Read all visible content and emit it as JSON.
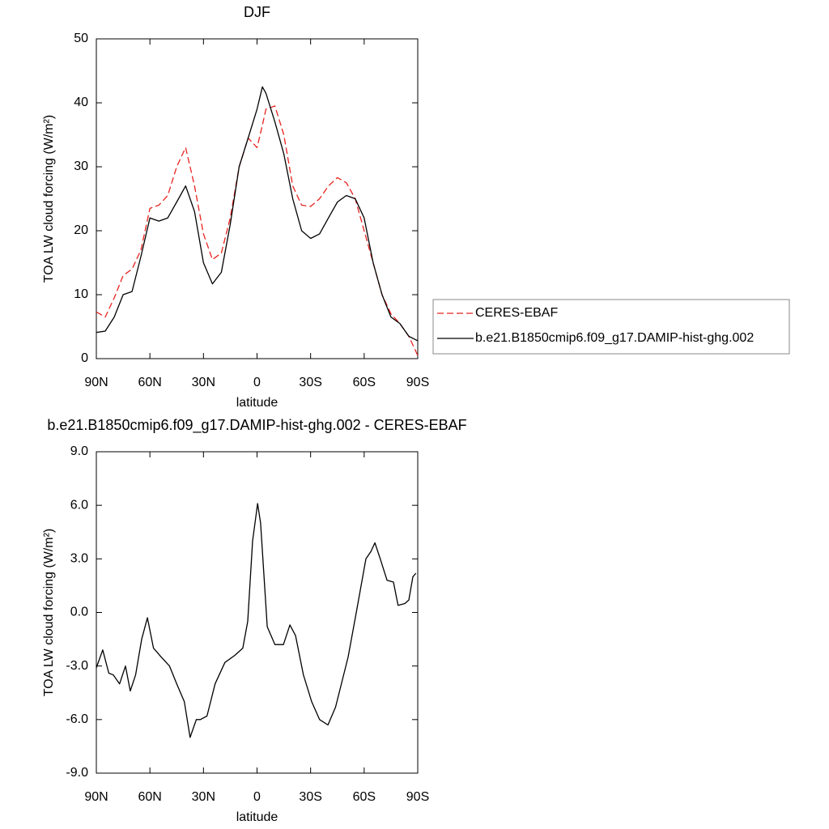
{
  "chart_data": [
    {
      "type": "line",
      "title": "DJF",
      "xlabel": "latitude",
      "ylabel": "TOA LW cloud forcing (W/m²)",
      "x": [
        90,
        85,
        80,
        75,
        70,
        65,
        60,
        55,
        50,
        45,
        40,
        35,
        30,
        25,
        20,
        15,
        10,
        5,
        0,
        -3,
        -5,
        -10,
        -15,
        -20,
        -25,
        -30,
        -35,
        -40,
        -45,
        -50,
        -55,
        -60,
        -65,
        -70,
        -75,
        -80,
        -85,
        -90
      ],
      "xlim": [
        90,
        -90
      ],
      "xticks": [
        {
          "value": 90,
          "label": "90N"
        },
        {
          "value": 60,
          "label": "60N"
        },
        {
          "value": 30,
          "label": "30N"
        },
        {
          "value": 0,
          "label": "0"
        },
        {
          "value": -30,
          "label": "30S"
        },
        {
          "value": -60,
          "label": "60S"
        },
        {
          "value": -90,
          "label": "90S"
        }
      ],
      "ylim": [
        0,
        50
      ],
      "yticks": [
        0,
        10,
        20,
        30,
        40,
        50
      ],
      "legend": "right",
      "series": [
        {
          "name": "CERES-EBAF",
          "color": "#e8231f",
          "dash": true,
          "values": [
            7.3,
            6.5,
            9.5,
            13,
            14,
            17,
            23.5,
            24,
            25.5,
            30,
            33,
            27,
            19.5,
            15.5,
            16.5,
            22,
            30,
            34.5,
            33,
            36.5,
            39,
            39.5,
            35,
            27,
            24,
            23.8,
            25,
            27,
            28.3,
            27.5,
            25,
            20,
            15,
            10,
            7,
            5.5,
            3.5,
            0.5
          ]
        },
        {
          "name": "b.e21.B1850cmip6.f09_g17.DAMIP-hist-ghg.002",
          "color": "#000000",
          "dash": false,
          "values": [
            4.1,
            4.3,
            6.5,
            10,
            10.5,
            16,
            22,
            21.5,
            22,
            24.5,
            27,
            23,
            15,
            11.7,
            13.5,
            21,
            30,
            34.5,
            39,
            42.5,
            41.5,
            37,
            32,
            25,
            20,
            18.8,
            19.5,
            22,
            24.5,
            25.5,
            25,
            22,
            15,
            10,
            6.5,
            5.5,
            3.5,
            2.8
          ]
        }
      ]
    },
    {
      "type": "line",
      "title": "b.e21.B1850cmip6.f09_g17.DAMIP-hist-ghg.002 - CERES-EBAF",
      "xlabel": "latitude",
      "ylabel": "TOA LW cloud forcing (W/m²)",
      "x": [
        90,
        86.4,
        83,
        80.5,
        77,
        73.7,
        71,
        68,
        64.6,
        61.4,
        58,
        53.7,
        49,
        45,
        40.7,
        37.5,
        34,
        31.7,
        28,
        23.5,
        18,
        12.4,
        8,
        5.2,
        2.5,
        -0.3,
        -2,
        -5.7,
        -10,
        -14.8,
        -18.4,
        -21.6,
        -26,
        -30.6,
        -35,
        -39.7,
        -44,
        -51,
        -55.6,
        -61,
        -63.7,
        -66,
        -69,
        -72.8,
        -76.4,
        -79,
        -82.8,
        -85,
        -87.3,
        -89
      ],
      "xlim": [
        90,
        -90
      ],
      "xticks": [
        {
          "value": 90,
          "label": "90N"
        },
        {
          "value": 60,
          "label": "60N"
        },
        {
          "value": 30,
          "label": "30N"
        },
        {
          "value": 0,
          "label": "0"
        },
        {
          "value": -30,
          "label": "30S"
        },
        {
          "value": -60,
          "label": "60S"
        },
        {
          "value": -90,
          "label": "90S"
        }
      ],
      "ylim": [
        -9,
        9
      ],
      "yticks": [
        {
          "value": -9,
          "label": "-9.0"
        },
        {
          "value": -6,
          "label": "-6.0"
        },
        {
          "value": -3,
          "label": "-3.0"
        },
        {
          "value": 0,
          "label": "0.0"
        },
        {
          "value": 3,
          "label": "3.0"
        },
        {
          "value": 6,
          "label": "6.0"
        },
        {
          "value": 9,
          "label": "9.0"
        }
      ],
      "series": [
        {
          "color": "#000000",
          "dash": false,
          "values": [
            -3.1,
            -2.1,
            -3.4,
            -3.5,
            -4,
            -3,
            -4.4,
            -3.5,
            -1.5,
            -0.3,
            -2,
            -2.5,
            -3,
            -4,
            -5,
            -7,
            -6,
            -6,
            -5.8,
            -4,
            -2.8,
            -2.4,
            -2,
            -0.5,
            4,
            6.1,
            5,
            -0.8,
            -1.8,
            -1.8,
            -0.7,
            -1.3,
            -3.5,
            -5,
            -6,
            -6.3,
            -5.3,
            -2.5,
            0,
            3,
            3.4,
            3.9,
            3,
            1.8,
            1.7,
            0.4,
            0.5,
            0.7,
            2,
            2.2
          ]
        }
      ]
    }
  ]
}
